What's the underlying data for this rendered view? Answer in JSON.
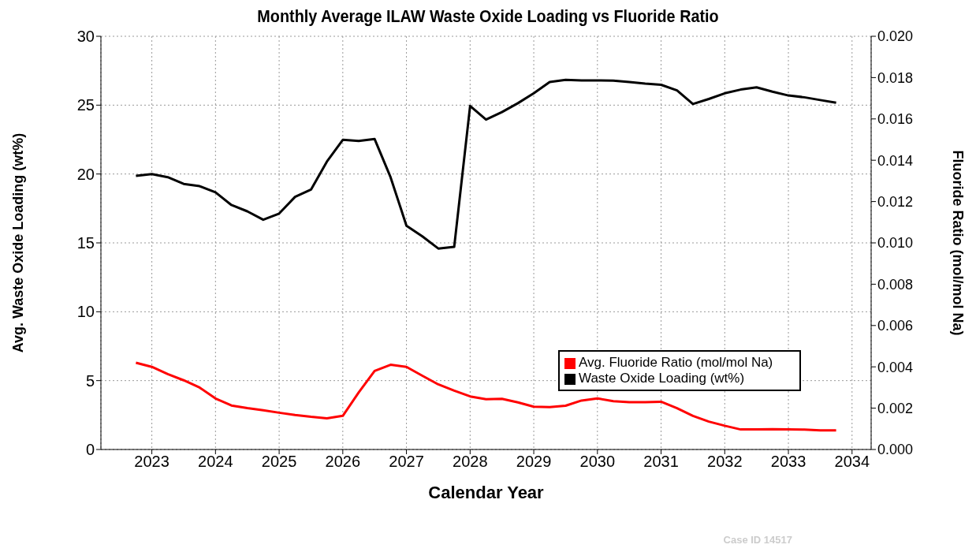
{
  "chart_data": {
    "type": "line",
    "title": "Monthly Average ILAW Waste Oxide Loading vs Fluoride Ratio",
    "xlabel": "Calendar Year",
    "ylabel": "Avg. Waste Oxide Loading (wt%)",
    "y2label": "Fluoride Ratio (mol/mol Na)",
    "x": [
      2022.75,
      2023,
      2023.25,
      2023.5,
      2023.75,
      2024,
      2024.25,
      2024.5,
      2024.75,
      2025,
      2025.25,
      2025.5,
      2025.75,
      2026,
      2026.25,
      2026.5,
      2026.75,
      2027,
      2027.25,
      2027.5,
      2027.75,
      2028,
      2028.25,
      2028.5,
      2028.75,
      2029,
      2029.25,
      2029.5,
      2029.75,
      2030,
      2030.25,
      2030.5,
      2030.75,
      2031,
      2031.25,
      2031.5,
      2031.75,
      2032,
      2032.25,
      2032.5,
      2032.75,
      2033,
      2033.25,
      2033.5,
      2033.75
    ],
    "series": [
      {
        "name": "Avg. Fluoride Ratio (mol/mol Na)",
        "color": "#ff0000",
        "axis": "y2",
        "values": [
          0.0042,
          0.004,
          0.00365,
          0.00335,
          0.003,
          0.00247,
          0.00213,
          0.002,
          0.0019,
          0.00178,
          0.00167,
          0.00158,
          0.00151,
          0.00163,
          0.00276,
          0.0038,
          0.0041,
          0.004,
          0.00357,
          0.00315,
          0.00285,
          0.00257,
          0.00243,
          0.00245,
          0.00228,
          0.00207,
          0.00205,
          0.00212,
          0.00237,
          0.00247,
          0.00234,
          0.00229,
          0.00229,
          0.00231,
          0.002,
          0.00163,
          0.00135,
          0.00115,
          0.00097,
          0.00097,
          0.00098,
          0.00097,
          0.00096,
          0.00093,
          0.00093
        ]
      },
      {
        "name": "Waste Oxide Loading (wt%)",
        "color": "#000000",
        "values": [
          19.86,
          20.0,
          19.77,
          19.28,
          19.12,
          18.67,
          17.75,
          17.29,
          16.68,
          17.13,
          18.34,
          18.87,
          20.9,
          22.48,
          22.4,
          22.54,
          19.77,
          16.25,
          15.47,
          14.59,
          14.71,
          24.94,
          23.95,
          24.5,
          25.14,
          25.86,
          26.68,
          26.84,
          26.8,
          26.8,
          26.78,
          26.68,
          26.56,
          26.48,
          26.07,
          25.08,
          25.45,
          25.86,
          26.13,
          26.29,
          25.98,
          25.7,
          25.57,
          25.37,
          25.18
        ]
      }
    ],
    "xlim": [
      2022.2,
      2034.3
    ],
    "xticks": [
      2023,
      2024,
      2025,
      2026,
      2027,
      2028,
      2029,
      2030,
      2031,
      2032,
      2033,
      2034
    ],
    "ylim": [
      0,
      30
    ],
    "yticks": [
      0,
      5,
      10,
      15,
      20,
      25,
      30
    ],
    "y2lim": [
      0,
      0.02
    ],
    "y2ticks": [
      {
        "value": 0,
        "label": "0.000"
      },
      {
        "value": 0.002,
        "label": "0.002"
      },
      {
        "value": 0.004,
        "label": "0.004"
      },
      {
        "value": 0.006,
        "label": "0.006"
      },
      {
        "value": 0.008,
        "label": "0.008"
      },
      {
        "value": 0.01,
        "label": "0.010"
      },
      {
        "value": 0.012,
        "label": "0.012"
      },
      {
        "value": 0.014,
        "label": "0.014"
      },
      {
        "value": 0.016,
        "label": "0.016"
      },
      {
        "value": 0.018,
        "label": "0.018"
      },
      {
        "value": 0.02,
        "label": "0.020"
      }
    ],
    "grid": true,
    "legend": "bottom right",
    "marker": "none",
    "line_style": "solid",
    "annotations": [
      "Case ID 14517"
    ]
  }
}
